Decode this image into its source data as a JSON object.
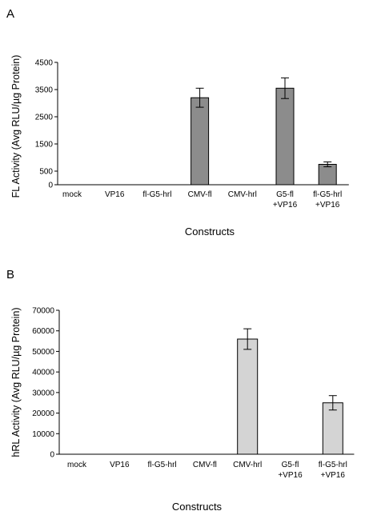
{
  "chart_data": [
    {
      "type": "bar",
      "panel_label": "A",
      "categories": [
        [
          "mock"
        ],
        [
          "VP16"
        ],
        [
          "fl-G5-hrl"
        ],
        [
          "CMV-fl"
        ],
        [
          "CMV-hrl"
        ],
        [
          "G5-fl",
          "+VP16"
        ],
        [
          "fl-G5-hrl",
          "+VP16"
        ]
      ],
      "values": [
        0,
        0,
        0,
        3200,
        0,
        3550,
        750
      ],
      "errors": [
        0,
        0,
        0,
        350,
        0,
        380,
        90
      ],
      "yticks": [
        0,
        500,
        1500,
        2500,
        3500,
        4500
      ],
      "ylim": [
        0,
        4500
      ],
      "xlabel": "Constructs",
      "ylabel": "FL Activity (Avg RLU/µg Protein)",
      "bar_color": "#8c8c8c",
      "grid": false,
      "legend": "none"
    },
    {
      "type": "bar",
      "panel_label": "B",
      "categories": [
        [
          "mock"
        ],
        [
          "VP16"
        ],
        [
          "fl-G5-hrl"
        ],
        [
          "CMV-fl"
        ],
        [
          "CMV-hrl"
        ],
        [
          "G5-fl",
          "+VP16"
        ],
        [
          "fl-G5-hrl",
          "+VP16"
        ]
      ],
      "values": [
        0,
        0,
        0,
        0,
        56000,
        0,
        25000
      ],
      "errors": [
        0,
        0,
        0,
        0,
        5000,
        0,
        3500
      ],
      "yticks": [
        0,
        10000,
        20000,
        30000,
        40000,
        50000,
        60000,
        70000
      ],
      "ylim": [
        0,
        70000
      ],
      "xlabel": "Constructs",
      "ylabel": "hRL Activity (Avg RLU/µg Protein)",
      "bar_color": "#d4d4d4",
      "grid": false,
      "legend": "none"
    }
  ]
}
